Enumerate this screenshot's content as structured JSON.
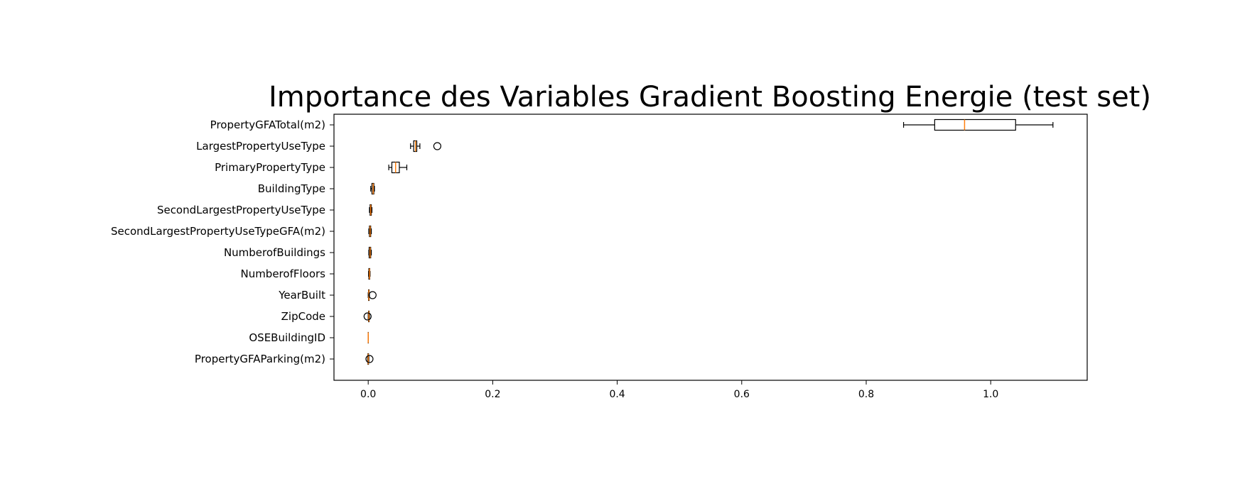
{
  "chart_data": {
    "type": "boxplot",
    "orientation": "horizontal",
    "title": "Importance des Variables Gradient Boosting Energie (test set)",
    "xlabel": "",
    "ylabel": "",
    "xlim": [
      -0.055,
      1.155
    ],
    "xticks": [
      0.0,
      0.2,
      0.4,
      0.6,
      0.8,
      1.0
    ],
    "xtick_labels": [
      "0.0",
      "0.2",
      "0.4",
      "0.6",
      "0.8",
      "1.0"
    ],
    "grid": false,
    "box_color": "#000000",
    "median_color": "#ff7f0e",
    "categories": [
      "PropertyGFATotal(m2)",
      "LargestPropertyUseType",
      "PrimaryPropertyType",
      "BuildingType",
      "SecondLargestPropertyUseType",
      "SecondLargestPropertyUseTypeGFA(m2)",
      "NumberofBuildings",
      "NumberofFloors",
      "YearBuilt",
      "ZipCode",
      "OSEBuildingID",
      "PropertyGFAParking(m2)"
    ],
    "boxes": [
      {
        "whislo": 0.86,
        "q1": 0.91,
        "med": 0.958,
        "q3": 1.04,
        "whishi": 1.1,
        "fliers": []
      },
      {
        "whislo": 0.068,
        "q1": 0.073,
        "med": 0.076,
        "q3": 0.078,
        "whishi": 0.083,
        "fliers": [
          0.111
        ]
      },
      {
        "whislo": 0.033,
        "q1": 0.038,
        "med": 0.044,
        "q3": 0.05,
        "whishi": 0.062,
        "fliers": []
      },
      {
        "whislo": 0.004,
        "q1": 0.006,
        "med": 0.008,
        "q3": 0.009,
        "whishi": 0.01,
        "fliers": []
      },
      {
        "whislo": 0.002,
        "q1": 0.003,
        "med": 0.004,
        "q3": 0.005,
        "whishi": 0.006,
        "fliers": []
      },
      {
        "whislo": 0.001,
        "q1": 0.002,
        "med": 0.003,
        "q3": 0.004,
        "whishi": 0.005,
        "fliers": []
      },
      {
        "whislo": 0.001,
        "q1": 0.0015,
        "med": 0.003,
        "q3": 0.004,
        "whishi": 0.005,
        "fliers": []
      },
      {
        "whislo": 0.0005,
        "q1": 0.001,
        "med": 0.002,
        "q3": 0.0025,
        "whishi": 0.003,
        "fliers": []
      },
      {
        "whislo": 0.0,
        "q1": 0.0005,
        "med": 0.001,
        "q3": 0.0015,
        "whishi": 0.002,
        "fliers": [
          0.007
        ]
      },
      {
        "whislo": 0.0,
        "q1": 0.0005,
        "med": 0.001,
        "q3": 0.0015,
        "whishi": 0.002,
        "fliers": [
          -0.001
        ]
      },
      {
        "whislo": 0.0,
        "q1": 0.0,
        "med": 0.0,
        "q3": 0.0,
        "whishi": 0.0,
        "fliers": []
      },
      {
        "whislo": -0.001,
        "q1": -0.0005,
        "med": 0.0,
        "q3": 0.0005,
        "whishi": 0.001,
        "fliers": [
          0.002
        ]
      }
    ]
  }
}
